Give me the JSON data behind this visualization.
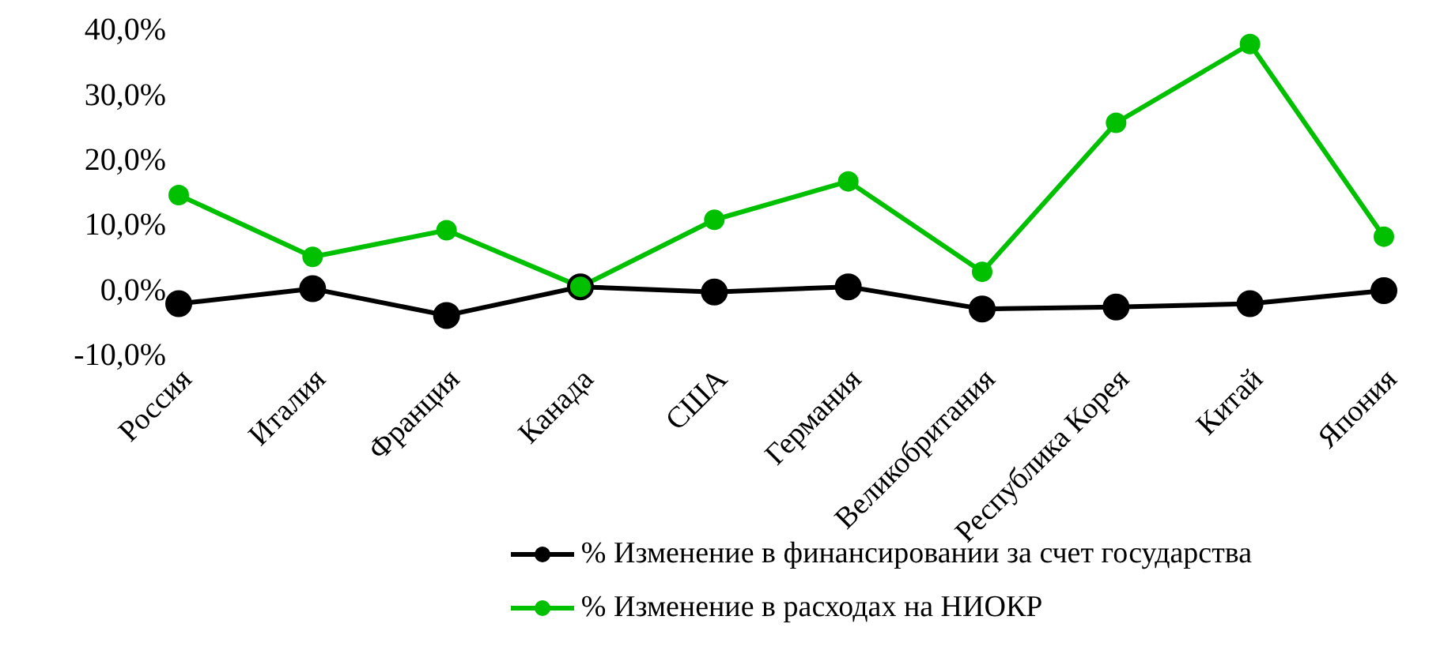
{
  "chart_data": {
    "type": "line",
    "categories": [
      "Россия",
      "Италия",
      "Франция",
      "Канада",
      "США",
      "Германия",
      "Великобритания",
      "Республика Корея",
      "Китай",
      "Япония"
    ],
    "series": [
      {
        "name": "% Изменение в финансировании за счет государства",
        "color": "#000000",
        "values": [
          -2.3,
          0,
          -4.1,
          0.3,
          -0.5,
          0.3,
          -3.1,
          -2.8,
          -2.3,
          -0.3
        ]
      },
      {
        "name": "% Изменение в расходах на НИОКР",
        "color": "#00c000",
        "values": [
          14.4,
          4.9,
          9.0,
          0.3,
          10.6,
          16.5,
          2.6,
          25.5,
          37.6,
          8.0
        ]
      }
    ],
    "ylim": [
      -10,
      40
    ],
    "yticks": [
      {
        "value": -10,
        "label": "-10,0%"
      },
      {
        "value": 0,
        "label": "0,0%"
      },
      {
        "value": 10,
        "label": "10,0%"
      },
      {
        "value": 20,
        "label": "20,0%"
      },
      {
        "value": 30,
        "label": "30,0%"
      },
      {
        "value": 40,
        "label": "40,0%"
      }
    ],
    "grid": false,
    "legend": "bottom",
    "marker": "circle",
    "line_style": "solid"
  }
}
